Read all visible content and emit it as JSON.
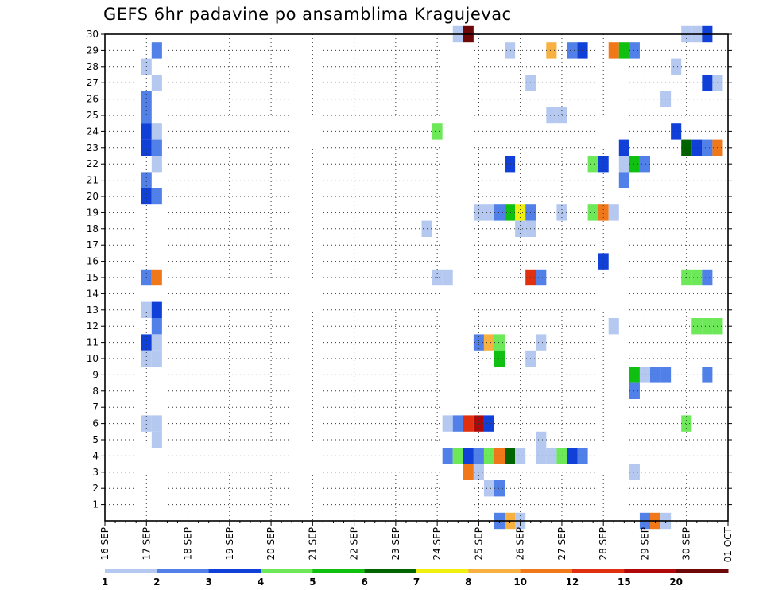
{
  "chart_data": {
    "type": "heatmap",
    "title": "GEFS 6hr padavine po ansamblima Kragujevac",
    "xlabel": "",
    "ylabel": "",
    "x_tick_labels": [
      "16 SEP",
      "17 SEP",
      "18 SEP",
      "19 SEP",
      "20 SEP",
      "21 SEP",
      "22 SEP",
      "23 SEP",
      "24 SEP",
      "25 SEP",
      "26 SEP",
      "27 SEP",
      "28 SEP",
      "29 SEP",
      "30 SEP",
      "01 OCT"
    ],
    "x_range_days": [
      0,
      15
    ],
    "y_tick_labels": [
      "1",
      "2",
      "3",
      "4",
      "5",
      "6",
      "7",
      "8",
      "9",
      "10",
      "11",
      "12",
      "13",
      "14",
      "15",
      "16",
      "17",
      "18",
      "19",
      "20",
      "21",
      "22",
      "23",
      "24",
      "25",
      "26",
      "27",
      "28",
      "29",
      "30"
    ],
    "y_range": [
      0,
      30
    ],
    "grid": true,
    "legend_placement": "bottom",
    "legend": {
      "labels": [
        "1",
        "2",
        "3",
        "4",
        "5",
        "6",
        "7",
        "8",
        "10",
        "12",
        "15",
        "20"
      ],
      "colors": [
        "#b4c8f0",
        "#5080e8",
        "#1040d8",
        "#6ce858",
        "#10c010",
        "#006400",
        "#f0f010",
        "#f8b040",
        "#f07818",
        "#e03010",
        "#b00808",
        "#6e0808"
      ]
    },
    "cells": [
      {
        "day": 1.0,
        "y": [
          28
        ],
        "c": 0
      },
      {
        "day": 1.0,
        "y": [
          26,
          25
        ],
        "c": 1
      },
      {
        "day": 1.0,
        "y": [
          24,
          23
        ],
        "c": 2
      },
      {
        "day": 1.0,
        "y": [
          21
        ],
        "c": 1
      },
      {
        "day": 1.0,
        "y": [
          20
        ],
        "c": 2
      },
      {
        "day": 1.0,
        "y": [
          15
        ],
        "c": 1
      },
      {
        "day": 1.0,
        "y": [
          13
        ],
        "c": 0
      },
      {
        "day": 1.0,
        "y": [
          11
        ],
        "c": 2
      },
      {
        "day": 1.0,
        "y": [
          10
        ],
        "c": 0
      },
      {
        "day": 1.0,
        "y": [
          6
        ],
        "c": 0
      },
      {
        "day": 1.25,
        "y": [
          29
        ],
        "c": 1
      },
      {
        "day": 1.25,
        "y": [
          27,
          24
        ],
        "c": 0
      },
      {
        "day": 1.25,
        "y": [
          23
        ],
        "c": 1
      },
      {
        "day": 1.25,
        "y": [
          22
        ],
        "c": 0
      },
      {
        "day": 1.25,
        "y": [
          20
        ],
        "c": 1
      },
      {
        "day": 1.25,
        "y": [
          15
        ],
        "c": 8
      },
      {
        "day": 1.25,
        "y": [
          13
        ],
        "c": 2
      },
      {
        "day": 1.25,
        "y": [
          12
        ],
        "c": 1
      },
      {
        "day": 1.25,
        "y": [
          11,
          10,
          6,
          5
        ],
        "c": 0
      },
      {
        "day": 7.75,
        "y": [
          18
        ],
        "c": 0
      },
      {
        "day": 8.0,
        "y": [
          24
        ],
        "c": 3
      },
      {
        "day": 8.0,
        "y": [
          15
        ],
        "c": 0
      },
      {
        "day": 8.25,
        "y": [
          15
        ],
        "c": 0
      },
      {
        "day": 8.25,
        "y": [
          6
        ],
        "c": 0
      },
      {
        "day": 8.25,
        "y": [
          4
        ],
        "c": 1
      },
      {
        "day": 8.5,
        "y": [
          30
        ],
        "c": 0
      },
      {
        "day": 8.5,
        "y": [
          6
        ],
        "c": 1
      },
      {
        "day": 8.5,
        "y": [
          4
        ],
        "c": 3
      },
      {
        "day": 8.75,
        "y": [
          30
        ],
        "c": 11
      },
      {
        "day": 8.75,
        "y": [
          6
        ],
        "c": 9
      },
      {
        "day": 8.75,
        "y": [
          4
        ],
        "c": 2
      },
      {
        "day": 8.75,
        "y": [
          3
        ],
        "c": 8
      },
      {
        "day": 9.0,
        "y": [
          19
        ],
        "c": 0
      },
      {
        "day": 9.0,
        "y": [
          11
        ],
        "c": 1
      },
      {
        "day": 9.0,
        "y": [
          6
        ],
        "c": 10
      },
      {
        "day": 9.0,
        "y": [
          4
        ],
        "c": 1
      },
      {
        "day": 9.0,
        "y": [
          3
        ],
        "c": 0
      },
      {
        "day": 9.25,
        "y": [
          19
        ],
        "c": 0
      },
      {
        "day": 9.25,
        "y": [
          11
        ],
        "c": 7
      },
      {
        "day": 9.25,
        "y": [
          6
        ],
        "c": 2
      },
      {
        "day": 9.25,
        "y": [
          4
        ],
        "c": 3
      },
      {
        "day": 9.25,
        "y": [
          2
        ],
        "c": 0
      },
      {
        "day": 9.5,
        "y": [
          19
        ],
        "c": 1
      },
      {
        "day": 9.5,
        "y": [
          11
        ],
        "c": 3
      },
      {
        "day": 9.5,
        "y": [
          10
        ],
        "c": 4
      },
      {
        "day": 9.5,
        "y": [
          4
        ],
        "c": 8
      },
      {
        "day": 9.5,
        "y": [
          2
        ],
        "c": 1
      },
      {
        "day": 9.5,
        "y": [
          0
        ],
        "c": 1
      },
      {
        "day": 9.75,
        "y": [
          29
        ],
        "c": 0
      },
      {
        "day": 9.75,
        "y": [
          22
        ],
        "c": 2
      },
      {
        "day": 9.75,
        "y": [
          19
        ],
        "c": 4
      },
      {
        "day": 9.75,
        "y": [
          4
        ],
        "c": 5
      },
      {
        "day": 9.75,
        "y": [
          0
        ],
        "c": 7
      },
      {
        "day": 10.0,
        "y": [
          19
        ],
        "c": 6
      },
      {
        "day": 10.0,
        "y": [
          18
        ],
        "c": 0
      },
      {
        "day": 10.0,
        "y": [
          4
        ],
        "c": 0
      },
      {
        "day": 10.0,
        "y": [
          0
        ],
        "c": 0
      },
      {
        "day": 10.25,
        "y": [
          27
        ],
        "c": 0
      },
      {
        "day": 10.25,
        "y": [
          19
        ],
        "c": 1
      },
      {
        "day": 10.25,
        "y": [
          18
        ],
        "c": 0
      },
      {
        "day": 10.25,
        "y": [
          15
        ],
        "c": 9
      },
      {
        "day": 10.25,
        "y": [
          10
        ],
        "c": 0
      },
      {
        "day": 10.5,
        "y": [
          15
        ],
        "c": 1
      },
      {
        "day": 10.5,
        "y": [
          11
        ],
        "c": 0
      },
      {
        "day": 10.5,
        "y": [
          5,
          4
        ],
        "c": 0
      },
      {
        "day": 10.75,
        "y": [
          29
        ],
        "c": 7
      },
      {
        "day": 10.75,
        "y": [
          25
        ],
        "c": 0
      },
      {
        "day": 10.75,
        "y": [
          4
        ],
        "c": 0
      },
      {
        "day": 11.0,
        "y": [
          25
        ],
        "c": 0
      },
      {
        "day": 11.0,
        "y": [
          19
        ],
        "c": 0
      },
      {
        "day": 11.0,
        "y": [
          4
        ],
        "c": 3
      },
      {
        "day": 11.25,
        "y": [
          29
        ],
        "c": 1
      },
      {
        "day": 11.25,
        "y": [
          4
        ],
        "c": 2
      },
      {
        "day": 11.5,
        "y": [
          29
        ],
        "c": 2
      },
      {
        "day": 11.5,
        "y": [
          4
        ],
        "c": 1
      },
      {
        "day": 11.75,
        "y": [
          22
        ],
        "c": 3
      },
      {
        "day": 11.75,
        "y": [
          19
        ],
        "c": 3
      },
      {
        "day": 12.0,
        "y": [
          22
        ],
        "c": 2
      },
      {
        "day": 12.0,
        "y": [
          19
        ],
        "c": 8
      },
      {
        "day": 12.0,
        "y": [
          16
        ],
        "c": 2
      },
      {
        "day": 12.25,
        "y": [
          29
        ],
        "c": 8
      },
      {
        "day": 12.25,
        "y": [
          19
        ],
        "c": 0
      },
      {
        "day": 12.25,
        "y": [
          12
        ],
        "c": 0
      },
      {
        "day": 12.5,
        "y": [
          29
        ],
        "c": 4
      },
      {
        "day": 12.5,
        "y": [
          23
        ],
        "c": 2
      },
      {
        "day": 12.5,
        "y": [
          22
        ],
        "c": 0
      },
      {
        "day": 12.5,
        "y": [
          21
        ],
        "c": 1
      },
      {
        "day": 12.75,
        "y": [
          29
        ],
        "c": 1
      },
      {
        "day": 12.75,
        "y": [
          22
        ],
        "c": 4
      },
      {
        "day": 12.75,
        "y": [
          9
        ],
        "c": 4
      },
      {
        "day": 12.75,
        "y": [
          8
        ],
        "c": 1
      },
      {
        "day": 12.75,
        "y": [
          3
        ],
        "c": 0
      },
      {
        "day": 13.0,
        "y": [
          22
        ],
        "c": 1
      },
      {
        "day": 13.0,
        "y": [
          9
        ],
        "c": 0
      },
      {
        "day": 13.0,
        "y": [
          0
        ],
        "c": 1
      },
      {
        "day": 13.25,
        "y": [
          9
        ],
        "c": 1
      },
      {
        "day": 13.25,
        "y": [
          0
        ],
        "c": 8
      },
      {
        "day": 13.5,
        "y": [
          26
        ],
        "c": 0
      },
      {
        "day": 13.5,
        "y": [
          9
        ],
        "c": 1
      },
      {
        "day": 13.5,
        "y": [
          0
        ],
        "c": 0
      },
      {
        "day": 13.75,
        "y": [
          28
        ],
        "c": 0
      },
      {
        "day": 13.75,
        "y": [
          24
        ],
        "c": 2
      },
      {
        "day": 14.0,
        "y": [
          30
        ],
        "c": 0
      },
      {
        "day": 14.0,
        "y": [
          23
        ],
        "c": 5
      },
      {
        "day": 14.0,
        "y": [
          15
        ],
        "c": 3
      },
      {
        "day": 14.0,
        "y": [
          6
        ],
        "c": 3
      },
      {
        "day": 14.25,
        "y": [
          30
        ],
        "c": 0
      },
      {
        "day": 14.25,
        "y": [
          23
        ],
        "c": 2
      },
      {
        "day": 14.25,
        "y": [
          15
        ],
        "c": 3
      },
      {
        "day": 14.25,
        "y": [
          12
        ],
        "c": 3
      },
      {
        "day": 14.5,
        "y": [
          30
        ],
        "c": 2
      },
      {
        "day": 14.5,
        "y": [
          27
        ],
        "c": 2
      },
      {
        "day": 14.5,
        "y": [
          23
        ],
        "c": 1
      },
      {
        "day": 14.5,
        "y": [
          15
        ],
        "c": 1
      },
      {
        "day": 14.5,
        "y": [
          12
        ],
        "c": 3
      },
      {
        "day": 14.5,
        "y": [
          9
        ],
        "c": 1
      },
      {
        "day": 14.75,
        "y": [
          27
        ],
        "c": 0
      },
      {
        "day": 14.75,
        "y": [
          23
        ],
        "c": 8
      },
      {
        "day": 14.75,
        "y": [
          12
        ],
        "c": 3
      }
    ]
  }
}
